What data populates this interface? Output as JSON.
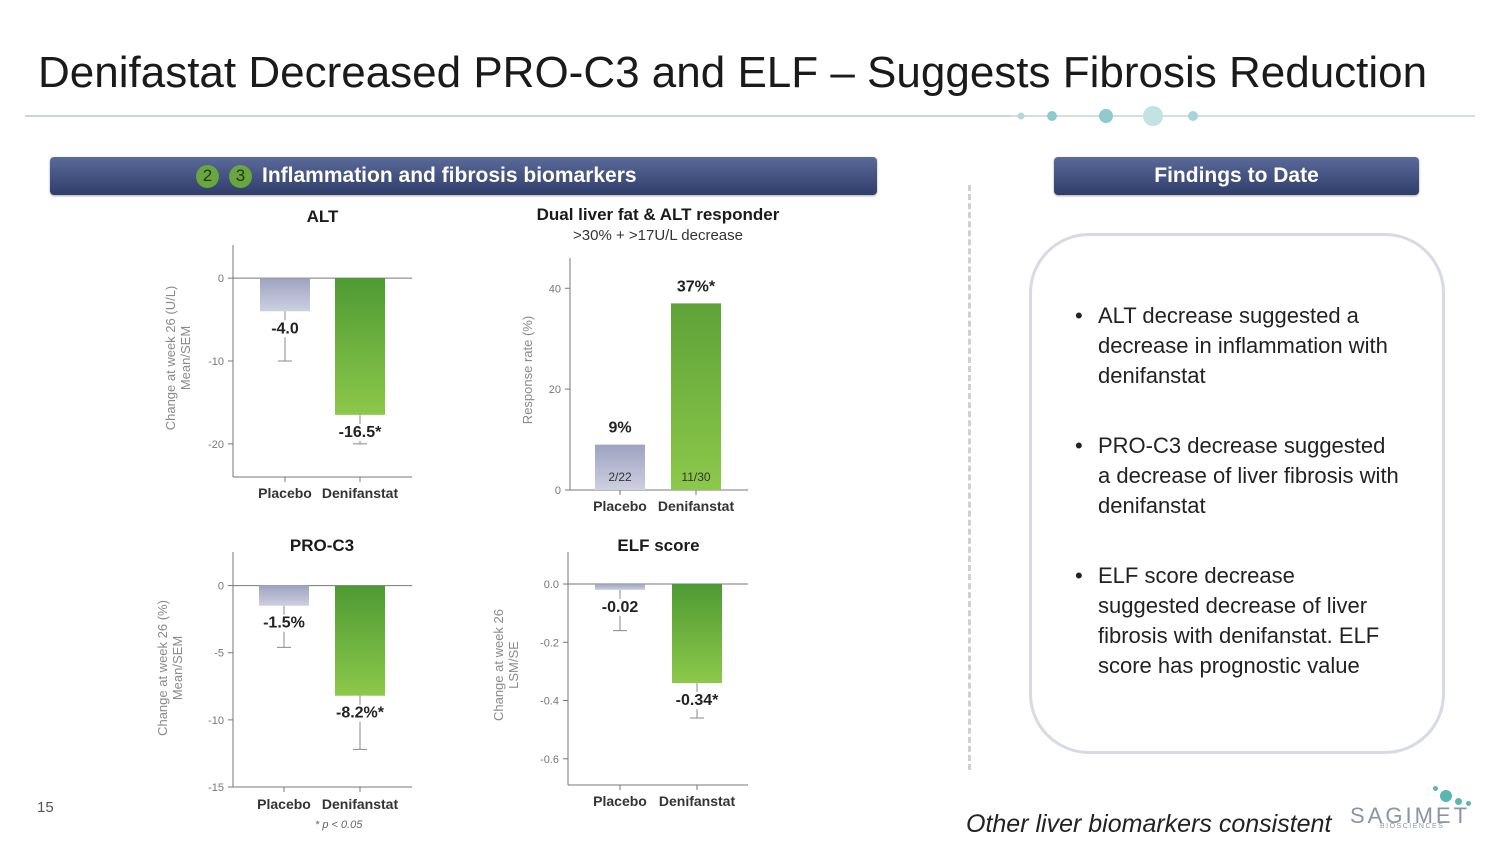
{
  "title": "Denifastat Decreased PRO-C3 and ELF – Suggests Fibrosis Reduction",
  "left_header": {
    "badges": [
      "2",
      "3"
    ],
    "label": "Inflammation and fibrosis biomarkers"
  },
  "right_header": {
    "label": "Findings to Date"
  },
  "findings": [
    "ALT decrease suggested a decrease in inflammation with denifanstat",
    "PRO-C3 decrease suggested a decrease of liver fibrosis with denifanstat",
    "ELF score decrease suggested decrease of liver fibrosis with denifanstat. ELF score has prognostic value"
  ],
  "page_number": "15",
  "footnote": "* p < 0.05",
  "other_note": "Other liver biomarkers consistent",
  "logo": {
    "name": "SAGIMET",
    "sub": "BIOSCIENCES"
  },
  "colors": {
    "header": "#3b4a7a",
    "placebo": "#aeb1cb",
    "treatment": "#6aaa3c",
    "accent_teal": "#5bb6b0"
  },
  "chart_data": [
    {
      "type": "bar",
      "title": "ALT",
      "ylabel": [
        "Change at week 26 (U/L)",
        "Mean/SEM"
      ],
      "categories": [
        "Placebo",
        "Denifanstat"
      ],
      "values": [
        -4.0,
        -16.5
      ],
      "value_labels": [
        "-4.0",
        "-16.5*"
      ],
      "error_low": [
        -10,
        -20
      ],
      "ylim": [
        -24,
        4
      ],
      "yticks": [
        0,
        -10,
        -20
      ],
      "ytick_labels": [
        "0",
        "-10",
        "-20"
      ]
    },
    {
      "type": "bar",
      "title": "Dual liver fat & ALT responder",
      "subtitle": ">30% + >17U/L decrease",
      "ylabel": [
        "Response rate (%)"
      ],
      "categories": [
        "Placebo",
        "Denifanstat"
      ],
      "values": [
        9,
        37
      ],
      "value_labels": [
        "9%",
        "37%*"
      ],
      "inner_labels": [
        "2/22",
        "11/30"
      ],
      "ylim": [
        0,
        46
      ],
      "yticks": [
        0,
        20,
        40
      ],
      "ytick_labels": [
        "0",
        "20",
        "40"
      ]
    },
    {
      "type": "bar",
      "title": "PRO-C3",
      "ylabel": [
        "Change at week 26 (%)",
        "Mean/SEM"
      ],
      "categories": [
        "Placebo",
        "Denifanstat"
      ],
      "values": [
        -1.5,
        -8.2
      ],
      "value_labels": [
        "-1.5%",
        "-8.2%*"
      ],
      "error_low": [
        -4.6,
        -12.2
      ],
      "ylim": [
        -15,
        2.5
      ],
      "yticks": [
        0,
        -5,
        -10,
        -15
      ],
      "ytick_labels": [
        "0",
        "-5",
        "-10",
        "-15"
      ]
    },
    {
      "type": "bar",
      "title": "ELF score",
      "ylabel": [
        "Change at week 26",
        "LSM/SE"
      ],
      "categories": [
        "Placebo",
        "Denifanstat"
      ],
      "values": [
        -0.02,
        -0.34
      ],
      "value_labels": [
        "-0.02",
        "-0.34*"
      ],
      "error_low": [
        -0.16,
        -0.46
      ],
      "ylim": [
        -0.69,
        0.11
      ],
      "yticks": [
        0.0,
        -0.2,
        -0.4,
        -0.6
      ],
      "ytick_labels": [
        "0.0",
        "-0.2",
        "-0.4",
        "-0.6"
      ]
    }
  ]
}
